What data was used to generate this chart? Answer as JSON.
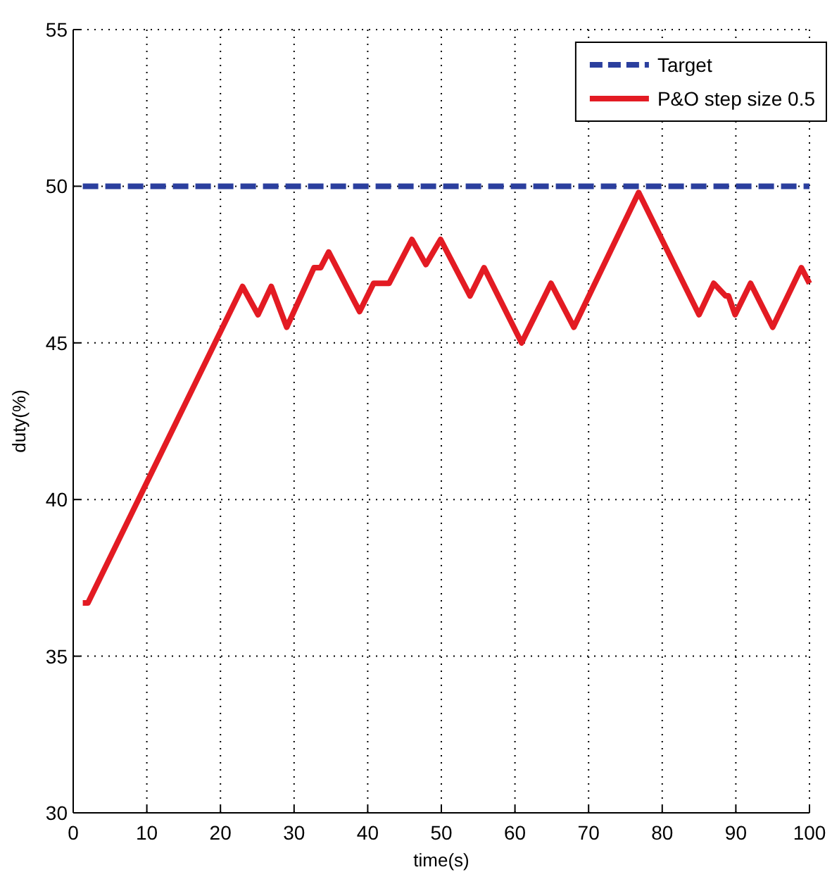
{
  "chart_data": {
    "type": "line",
    "xlabel": "time(s)",
    "ylabel": "duty(%)",
    "xlim": [
      0,
      100
    ],
    "xticks": [
      0,
      10,
      20,
      30,
      40,
      50,
      60,
      70,
      80,
      90,
      100
    ],
    "ylim": [
      30,
      55
    ],
    "yticks": [
      30,
      35,
      40,
      45,
      50,
      55
    ],
    "grid": true,
    "legend": "top right",
    "series": [
      {
        "name": "Target",
        "color": "#2b3f9e",
        "line_style": "dashed",
        "x": [
          1.3,
          100
        ],
        "values": [
          50,
          50
        ]
      },
      {
        "name": "P&O step size 0.5",
        "color": "#e31b23",
        "line_style": "solid",
        "x": [
          1.3,
          2,
          23,
          25.1,
          26.9,
          29,
          32.7,
          33.6,
          34.7,
          38.9,
          40.8,
          42.9,
          46,
          47.9,
          49.9,
          53.9,
          55.8,
          60.9,
          64.9,
          68,
          76.8,
          85,
          87,
          88.6,
          89,
          89.9,
          92,
          95,
          98.9,
          100
        ],
        "values": [
          36.7,
          36.7,
          46.8,
          45.9,
          46.8,
          45.5,
          47.4,
          47.4,
          47.9,
          46.0,
          46.9,
          46.9,
          48.3,
          47.5,
          48.3,
          46.5,
          47.4,
          45.0,
          46.9,
          45.5,
          49.8,
          45.9,
          46.9,
          46.5,
          46.5,
          45.9,
          46.9,
          45.5,
          47.4,
          46.9
        ]
      }
    ]
  }
}
